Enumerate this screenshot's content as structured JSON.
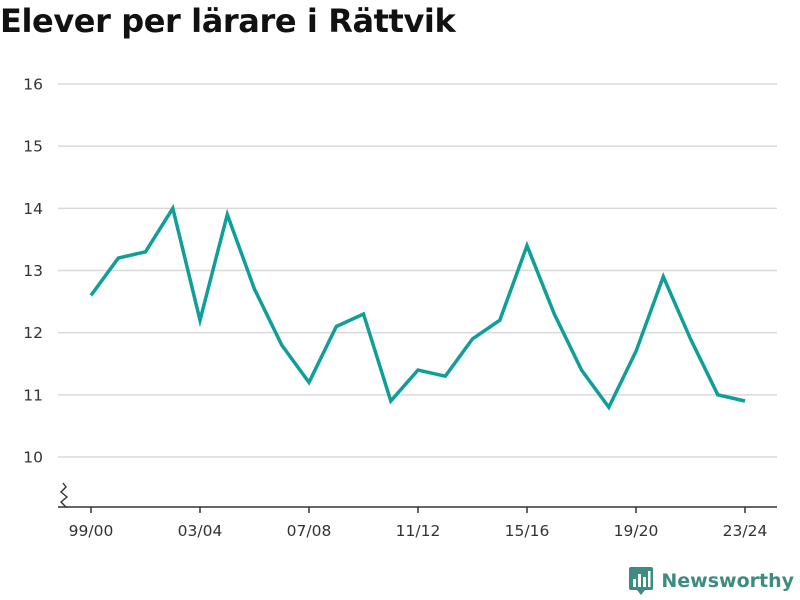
{
  "title": "Elever per lärare i Rättvik",
  "brand": {
    "name": "Newsworthy",
    "icon": "newsworthy-bar-chart-icon"
  },
  "colors": {
    "line": "#0f9e98",
    "grid": "#d9d9d9",
    "axis": "#333333",
    "brand": "#3e8b84"
  },
  "chart_data": {
    "type": "line",
    "title": "Elever per lärare i Rättvik",
    "xlabel": "",
    "ylabel": "",
    "x": [
      "99/00",
      "00/01",
      "01/02",
      "02/03",
      "03/04",
      "04/05",
      "05/06",
      "06/07",
      "07/08",
      "08/09",
      "09/10",
      "10/11",
      "11/12",
      "12/13",
      "13/14",
      "14/15",
      "15/16",
      "16/17",
      "17/18",
      "18/19",
      "19/20",
      "20/21",
      "21/22",
      "22/23",
      "23/24"
    ],
    "values": [
      12.6,
      13.2,
      13.3,
      14.0,
      12.2,
      13.9,
      12.7,
      11.8,
      11.2,
      12.1,
      12.3,
      10.9,
      11.4,
      11.3,
      11.9,
      12.2,
      13.4,
      12.3,
      11.4,
      10.8,
      11.7,
      12.9,
      11.9,
      11.0,
      10.9
    ],
    "xticks": [
      "99/00",
      "03/04",
      "07/08",
      "11/12",
      "15/16",
      "19/20",
      "23/24"
    ],
    "yticks": [
      10,
      11,
      12,
      13,
      14,
      15,
      16
    ],
    "ylim": [
      10,
      16
    ],
    "y_axis_break": true,
    "grid": true,
    "legend": "none"
  }
}
